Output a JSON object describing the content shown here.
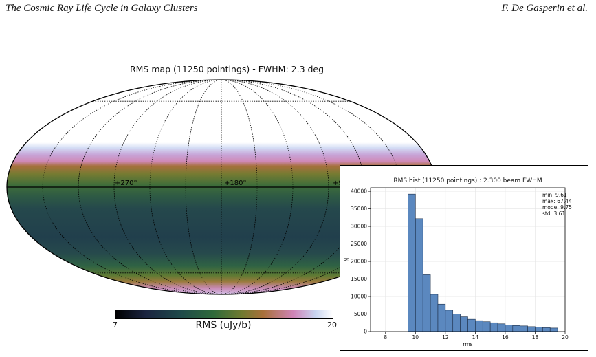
{
  "header": {
    "left": "The Cosmic Ray Life Cycle in Galaxy Clusters",
    "right": "F. De Gasperin et al."
  },
  "map": {
    "title": "RMS map (11250 pointings) - FWHM: 2.3 deg",
    "lon_labels": [
      "+270°",
      "+180°",
      "+9"
    ],
    "colorbar": {
      "label": "RMS (uJy/b)",
      "min_label": "7",
      "max_label": "20"
    }
  },
  "chart_data": {
    "type": "bar",
    "title": "RMS hist (11250 pointings) : 2.300 beam FWHM",
    "xlabel": "rms",
    "ylabel": "N",
    "xlim": [
      7,
      20
    ],
    "ylim": [
      0,
      41000
    ],
    "xticks": [
      8,
      10,
      12,
      14,
      16,
      18,
      20
    ],
    "yticks": [
      0,
      5000,
      10000,
      15000,
      20000,
      25000,
      30000,
      35000,
      40000
    ],
    "bin_width": 0.5,
    "bin_starts": [
      9.5,
      10.0,
      10.5,
      11.0,
      11.5,
      12.0,
      12.5,
      13.0,
      13.5,
      14.0,
      14.5,
      15.0,
      15.5,
      16.0,
      16.5,
      17.0,
      17.5,
      18.0,
      18.5,
      19.0
    ],
    "values": [
      39200,
      32200,
      16200,
      10600,
      7800,
      6100,
      5000,
      4200,
      3500,
      3100,
      2800,
      2500,
      2200,
      1900,
      1700,
      1600,
      1400,
      1300,
      1100,
      1000
    ],
    "bar_color": "#5b88bf",
    "grid": true,
    "stats": [
      "min: 9.61",
      "max: 67.44",
      "mode: 9.75",
      "std: 3.61"
    ]
  }
}
